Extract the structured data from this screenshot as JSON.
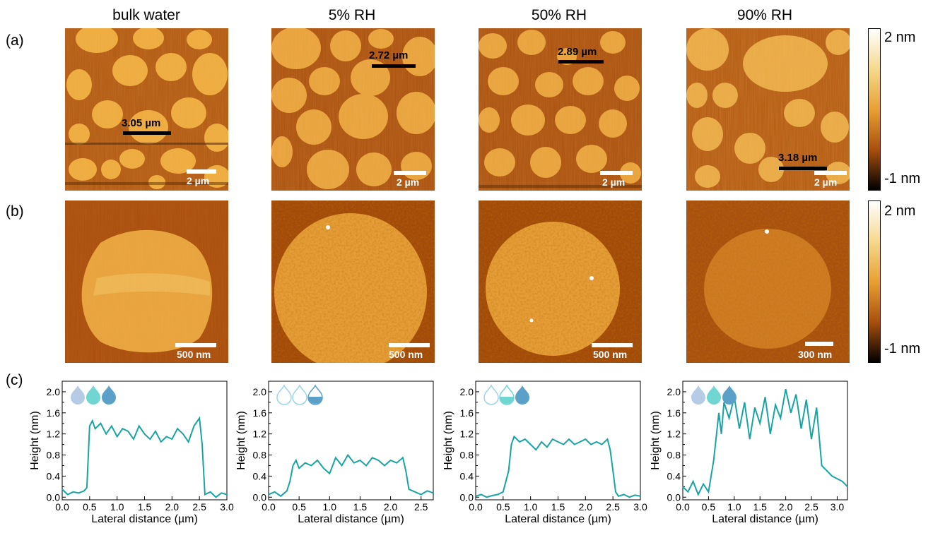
{
  "columns": [
    {
      "title": "bulk water"
    },
    {
      "title": "5% RH"
    },
    {
      "title": "50% RH"
    },
    {
      "title": "90% RH"
    }
  ],
  "panel_labels": {
    "a": "(a)",
    "b": "(b)",
    "c": "(c)"
  },
  "colorbar": {
    "max_label": "2 nm",
    "min_label": "-1 nm",
    "colors": [
      "#ffffff",
      "#f6d98c",
      "#e8a032",
      "#b35a0c",
      "#000000"
    ]
  },
  "row_a": [
    {
      "profile_label": "3.05 µm",
      "scale_label": "2 µm"
    },
    {
      "profile_label": "2.72 µm",
      "scale_label": "2 µm"
    },
    {
      "profile_label": "2.89 µm",
      "scale_label": "2 µm"
    },
    {
      "profile_label": "3.18 µm",
      "scale_label": "2 µm"
    }
  ],
  "row_b": [
    {
      "scale_label": "500 nm"
    },
    {
      "scale_label": "500 nm"
    },
    {
      "scale_label": "500 nm"
    },
    {
      "scale_label": "300 nm"
    }
  ],
  "chart_data": [
    {
      "type": "line",
      "xlabel": "Lateral distance (µm)",
      "ylabel": "Height (nm)",
      "xlim": [
        0,
        3.0
      ],
      "ylim": [
        -0.05,
        2.2
      ],
      "xticks": [
        "0.0",
        "0.5",
        "1.0",
        "1.5",
        "2.0",
        "2.5",
        "3.0"
      ],
      "yticks": [
        "0.0",
        "0.4",
        "0.8",
        "1.2",
        "1.6",
        "2.0"
      ],
      "series": [
        {
          "color": "#1aa3a3",
          "x": [
            0.0,
            0.1,
            0.2,
            0.3,
            0.4,
            0.45,
            0.5,
            0.55,
            0.6,
            0.7,
            0.8,
            0.9,
            1.0,
            1.1,
            1.2,
            1.3,
            1.4,
            1.5,
            1.6,
            1.7,
            1.8,
            1.9,
            2.0,
            2.1,
            2.2,
            2.3,
            2.4,
            2.5,
            2.55,
            2.6,
            2.7,
            2.8,
            2.9,
            3.0
          ],
          "y": [
            0.15,
            0.05,
            0.1,
            0.08,
            0.12,
            0.18,
            1.35,
            1.45,
            1.3,
            1.4,
            1.2,
            1.35,
            1.15,
            1.3,
            1.25,
            1.1,
            1.35,
            1.2,
            1.1,
            1.25,
            1.05,
            1.15,
            1.1,
            1.3,
            1.2,
            1.05,
            1.35,
            1.5,
            1.0,
            0.05,
            0.1,
            0.0,
            0.08,
            0.05
          ]
        }
      ]
    },
    {
      "type": "line",
      "xlabel": "Lateral distance (µm)",
      "ylabel": "Height (nm)",
      "xlim": [
        0,
        2.7
      ],
      "ylim": [
        -0.05,
        2.2
      ],
      "xticks": [
        "0.0",
        "0.5",
        "1.0",
        "1.5",
        "2.0",
        "2.5"
      ],
      "yticks": [
        "0.0",
        "0.4",
        "0.8",
        "1.2",
        "1.6",
        "2.0"
      ],
      "series": [
        {
          "color": "#1aa3a3",
          "x": [
            0.0,
            0.1,
            0.2,
            0.3,
            0.35,
            0.4,
            0.45,
            0.5,
            0.6,
            0.7,
            0.8,
            0.9,
            1.0,
            1.1,
            1.2,
            1.3,
            1.4,
            1.5,
            1.6,
            1.7,
            1.8,
            1.9,
            2.0,
            2.1,
            2.2,
            2.25,
            2.3,
            2.4,
            2.5,
            2.6,
            2.7
          ],
          "y": [
            0.05,
            0.1,
            0.02,
            0.12,
            0.3,
            0.6,
            0.7,
            0.55,
            0.65,
            0.6,
            0.7,
            0.55,
            0.45,
            0.75,
            0.6,
            0.8,
            0.65,
            0.7,
            0.6,
            0.75,
            0.7,
            0.6,
            0.7,
            0.65,
            0.75,
            0.5,
            0.15,
            0.1,
            0.05,
            0.12,
            0.08
          ]
        }
      ]
    },
    {
      "type": "line",
      "xlabel": "Lateral distance (µm)",
      "ylabel": "Height (nm)",
      "xlim": [
        0,
        3.0
      ],
      "ylim": [
        -0.05,
        2.2
      ],
      "xticks": [
        "0.0",
        "0.5",
        "1.0",
        "1.5",
        "2.0",
        "2.5",
        "3.0"
      ],
      "yticks": [
        "0.0",
        "0.4",
        "0.8",
        "1.2",
        "1.6",
        "2.0"
      ],
      "series": [
        {
          "color": "#1aa3a3",
          "x": [
            0.0,
            0.1,
            0.2,
            0.3,
            0.4,
            0.5,
            0.6,
            0.65,
            0.7,
            0.8,
            0.9,
            1.0,
            1.1,
            1.2,
            1.3,
            1.4,
            1.5,
            1.6,
            1.7,
            1.8,
            1.9,
            2.0,
            2.1,
            2.2,
            2.3,
            2.4,
            2.45,
            2.5,
            2.55,
            2.6,
            2.7,
            2.8,
            2.9,
            3.0
          ],
          "y": [
            0.02,
            0.05,
            0.0,
            0.03,
            0.05,
            0.1,
            0.5,
            1.0,
            1.15,
            1.05,
            1.1,
            1.0,
            0.9,
            1.05,
            0.95,
            1.1,
            1.05,
            1.0,
            1.1,
            1.0,
            1.05,
            1.1,
            1.0,
            1.05,
            1.0,
            1.1,
            0.9,
            0.5,
            0.1,
            0.02,
            0.05,
            0.0,
            0.04,
            0.02
          ]
        }
      ]
    },
    {
      "type": "line",
      "xlabel": "Lateral distance (µm)",
      "ylabel": "Height (nm)",
      "xlim": [
        0,
        3.2
      ],
      "ylim": [
        -0.05,
        2.2
      ],
      "xticks": [
        "0.0",
        "0.5",
        "1.0",
        "1.5",
        "2.0",
        "2.5",
        "3.0"
      ],
      "yticks": [
        "0.0",
        "0.4",
        "0.8",
        "1.2",
        "1.6",
        "2.0"
      ],
      "series": [
        {
          "color": "#1aa3a3",
          "x": [
            0.0,
            0.1,
            0.2,
            0.3,
            0.4,
            0.5,
            0.6,
            0.7,
            0.75,
            0.8,
            0.9,
            1.0,
            1.1,
            1.2,
            1.3,
            1.4,
            1.5,
            1.6,
            1.7,
            1.8,
            1.9,
            2.0,
            2.1,
            2.2,
            2.3,
            2.4,
            2.5,
            2.6,
            2.7,
            2.8,
            2.9,
            3.0,
            3.1,
            3.2
          ],
          "y": [
            0.2,
            0.1,
            0.3,
            0.05,
            0.25,
            0.1,
            0.7,
            1.6,
            1.2,
            1.8,
            1.5,
            1.9,
            1.3,
            1.8,
            1.1,
            1.7,
            1.4,
            1.9,
            1.2,
            1.75,
            1.5,
            2.05,
            1.6,
            1.95,
            1.3,
            1.85,
            1.1,
            1.7,
            0.6,
            0.5,
            0.4,
            0.35,
            0.3,
            0.2
          ]
        }
      ]
    }
  ],
  "droplets": [
    [
      "full-light",
      "full-mid",
      "full-dark"
    ],
    [
      "empty",
      "empty",
      "half-dark"
    ],
    [
      "empty",
      "half-mid",
      "full-dark"
    ],
    [
      "full-light",
      "full-mid",
      "full-dark"
    ]
  ]
}
